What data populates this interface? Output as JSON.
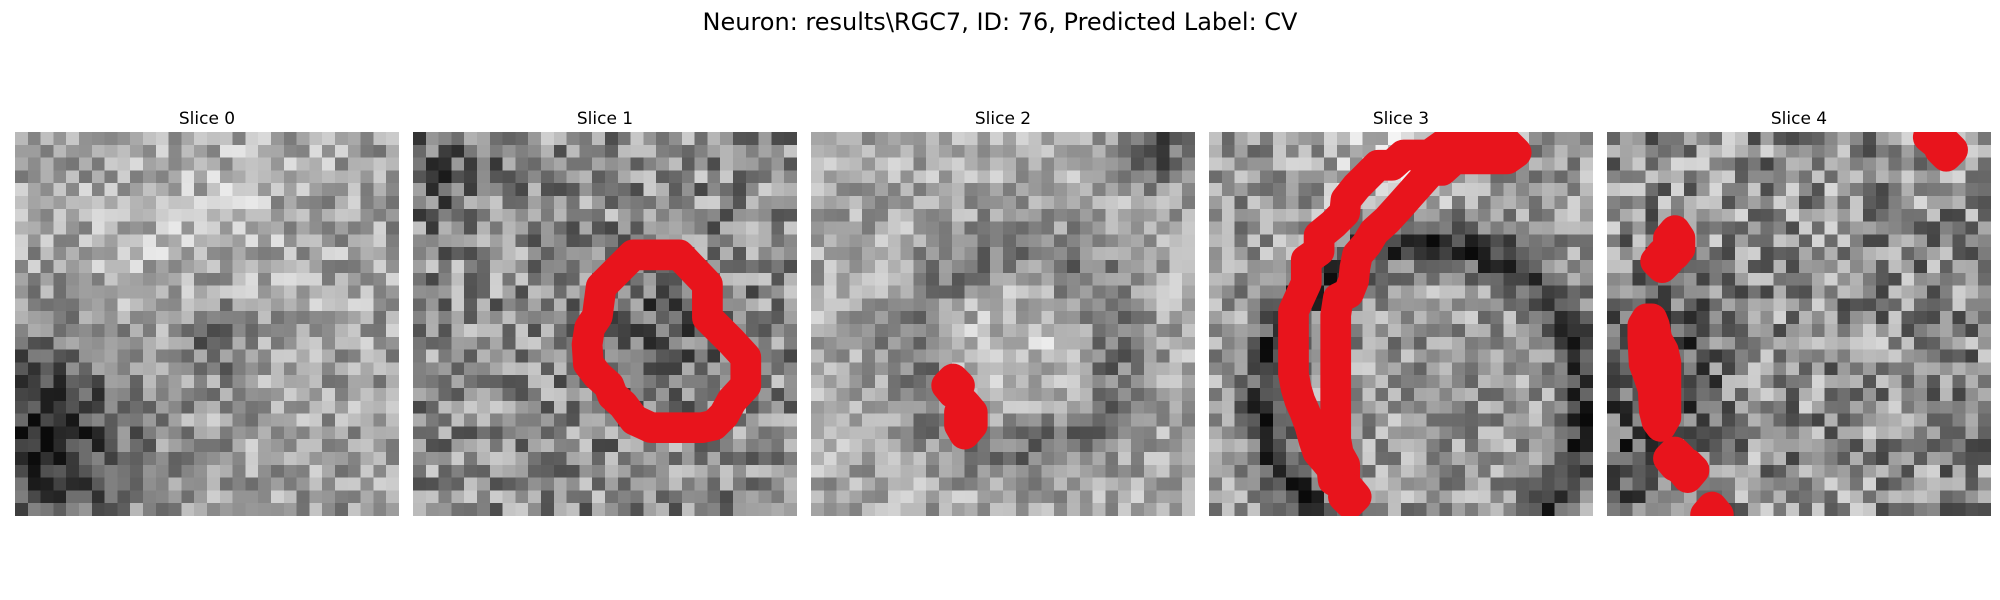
{
  "figure": {
    "title": "Neuron: results\\RGC7, ID: 76, Predicted Label: CV"
  },
  "colors": {
    "background": "#ffffff",
    "contour": "#e8141c",
    "colormap": "gray"
  },
  "grid": {
    "cells_per_side": 30
  },
  "slices": [
    {
      "title": "Slice 0",
      "has_contour": false
    },
    {
      "title": "Slice 1",
      "has_contour": true
    },
    {
      "title": "Slice 2",
      "has_contour": true
    },
    {
      "title": "Slice 3",
      "has_contour": true
    },
    {
      "title": "Slice 4",
      "has_contour": true
    }
  ]
}
